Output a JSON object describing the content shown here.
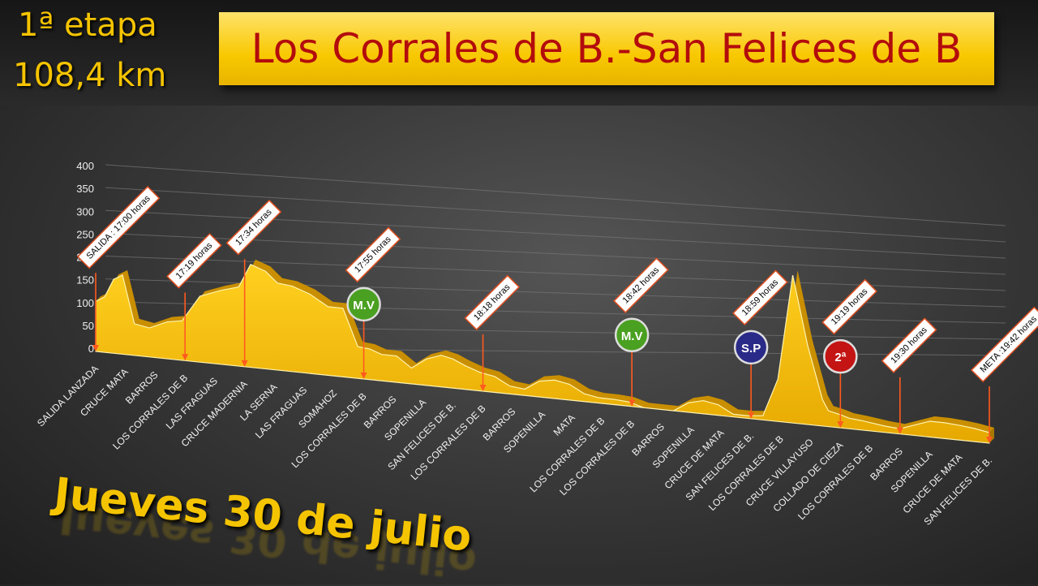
{
  "header": {
    "stage_number": "1ª etapa",
    "stage_distance": "108,4 km",
    "title": "Los Corrales de B.-San Felices de B"
  },
  "footer": {
    "date": "Jueves 30 de julio"
  },
  "colors": {
    "accent": "#f5c400",
    "title_text": "#b30c0c",
    "profile_fill": "#ffc000",
    "marker_line": "#ff5a1f"
  },
  "chart_data": {
    "type": "area",
    "ylim": [
      0,
      400
    ],
    "yticks": [
      0,
      50,
      100,
      150,
      200,
      250,
      300,
      350,
      400
    ],
    "categories": [
      "SALIDA LANZADA",
      "CRUCE MATA",
      "BARROS",
      "LOS CORRALES DE B",
      "LAS FRAGUAS",
      "CRUCE MADERNIA",
      "LA SERNA",
      "LAS FRAGUAS",
      "SOMAHOZ",
      "LOS CORRALES DE B",
      "BARROS",
      "SOPENILLA",
      "SAN FELICES DE B.",
      "LOS CORRALES DE B",
      "BARROS",
      "SOPENILLA",
      "MATA",
      "LOS CORRALES DE B",
      "LOS CORRALES DE B",
      "BARROS",
      "SOPENILLA",
      "CRUCE DE MATA",
      "SAN FELICES DE B.",
      "LOS CORRALES DE B",
      "CRUCE VILLAYUSO",
      "COLLADO DE CIEZA",
      "LOS CORRALES DE B",
      "BARROS",
      "SOPENILLA",
      "CRUCE DE MATA",
      "SAN FELICES DE B."
    ],
    "profile": {
      "x": [
        0,
        0.3,
        0.6,
        0.9,
        1.3,
        1.8,
        2.4,
        2.9,
        3.5,
        4.2,
        4.8,
        5.2,
        5.7,
        6.1,
        6.6,
        7.2,
        7.8,
        8.3,
        8.8,
        9.2,
        9.6,
        10.1,
        10.6,
        11.1,
        11.6,
        12.0,
        12.4,
        12.9,
        13.4,
        13.9,
        14.4,
        14.9,
        15.4,
        15.9,
        16.4,
        16.9,
        17.4,
        17.9,
        18.4,
        18.9,
        19.4,
        19.9,
        20.4,
        20.9,
        21.4,
        21.9,
        22.4,
        22.9,
        23.4,
        23.9,
        24.4,
        24.6,
        25.0,
        25.3,
        25.7,
        26.1,
        26.5,
        27.0,
        27.5,
        28.0,
        28.5,
        29.0,
        29.5,
        30.0
      ],
      "y": [
        95,
        105,
        140,
        150,
        60,
        55,
        70,
        75,
        125,
        140,
        150,
        195,
        185,
        165,
        162,
        150,
        130,
        130,
        60,
        58,
        50,
        50,
        30,
        50,
        60,
        55,
        45,
        35,
        30,
        15,
        12,
        30,
        35,
        30,
        15,
        10,
        10,
        8,
        0,
        0,
        0,
        18,
        25,
        20,
        5,
        5,
        8,
        80,
        280,
        150,
        50,
        30,
        25,
        20,
        18,
        15,
        12,
        10,
        20,
        30,
        30,
        28,
        25,
        20
      ]
    },
    "markers": [
      {
        "category": 0,
        "label": "SALIDA : 17:00 horas"
      },
      {
        "category": 3,
        "label": "17:19 horas"
      },
      {
        "category": 5,
        "label": "17:34 horas"
      },
      {
        "category": 9,
        "label": "17:55 horas",
        "badge": "M.V"
      },
      {
        "category": 13,
        "label": "18:18 horas"
      },
      {
        "category": 18,
        "label": "18:42 horas",
        "badge": "M.V"
      },
      {
        "category": 22,
        "label": "18:59 horas",
        "badge": "S.P"
      },
      {
        "category": 25,
        "label": "19:19 horas",
        "badge": "2ª"
      },
      {
        "category": 27,
        "label": "19:30 horas"
      },
      {
        "category": 30,
        "label": "META :19:42 horas"
      }
    ]
  }
}
